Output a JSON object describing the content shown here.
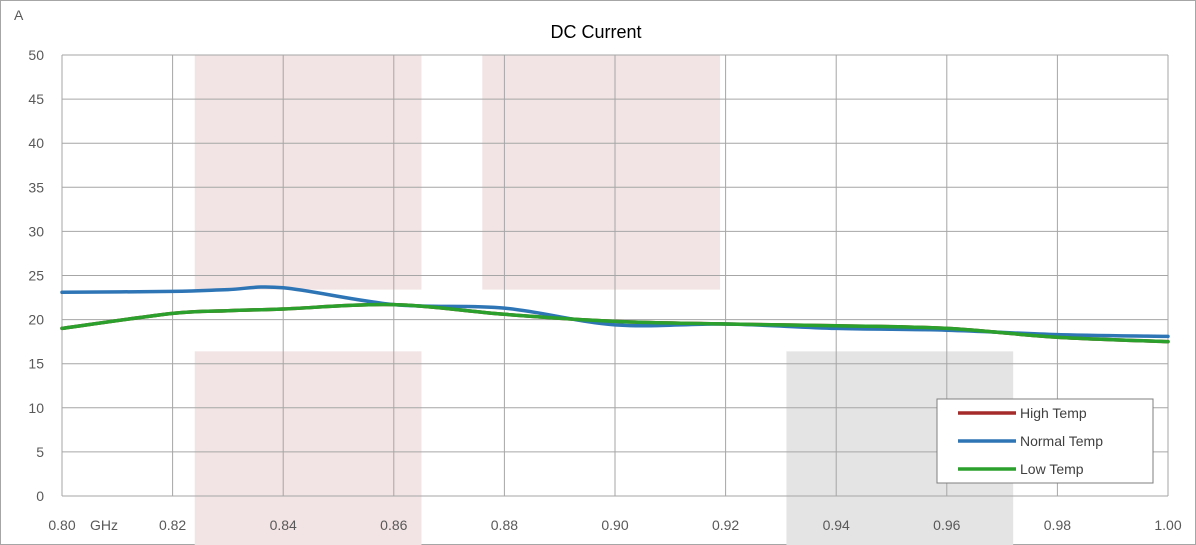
{
  "chart_data": {
    "type": "line",
    "title": "DC Current",
    "ylabel": "A",
    "x_unit_label": "GHz",
    "xlim": [
      0.8,
      1.0
    ],
    "ylim": [
      0,
      50
    ],
    "x_tick_labels": [
      "0.80",
      "0.82",
      "0.84",
      "0.86",
      "0.88",
      "0.90",
      "0.92",
      "0.94",
      "0.96",
      "0.98",
      "1.00"
    ],
    "y_tick_labels": [
      "0",
      "5",
      "10",
      "15",
      "20",
      "25",
      "30",
      "35",
      "40",
      "45",
      "50"
    ],
    "grid": true,
    "legend_position": "bottom-right",
    "shaded_regions": [
      {
        "x": [
          0.824,
          0.865
        ],
        "y": [
          23.4,
          50
        ],
        "color": "#f2e4e4"
      },
      {
        "x": [
          0.824,
          0.865
        ],
        "y": [
          0,
          16.4
        ],
        "color": "#f2e4e4"
      },
      {
        "x": [
          0.876,
          0.919
        ],
        "y": [
          23.4,
          50
        ],
        "color": "#f2e4e4"
      },
      {
        "x": [
          0.931,
          0.972
        ],
        "y": [
          0,
          16.4
        ],
        "color": "#e4e4e4"
      }
    ],
    "x": [
      0.8,
      0.82,
      0.83,
      0.84,
      0.86,
      0.88,
      0.9,
      0.92,
      0.94,
      0.96,
      0.98,
      1.0
    ],
    "series": [
      {
        "name": "High Temp",
        "color": "#a52a2a",
        "values": [
          19.0,
          20.7,
          21.0,
          21.2,
          21.7,
          20.6,
          19.8,
          19.5,
          19.3,
          19.0,
          18.0,
          17.5
        ]
      },
      {
        "name": "Normal Temp",
        "color": "#2e75b6",
        "values": [
          23.1,
          23.2,
          23.4,
          23.6,
          21.7,
          21.3,
          19.4,
          19.5,
          19.0,
          18.8,
          18.3,
          18.1
        ]
      },
      {
        "name": "Low Temp",
        "color": "#2ca02c",
        "values": [
          19.0,
          20.7,
          21.0,
          21.2,
          21.7,
          20.6,
          19.8,
          19.5,
          19.3,
          19.0,
          18.0,
          17.5
        ]
      }
    ]
  }
}
